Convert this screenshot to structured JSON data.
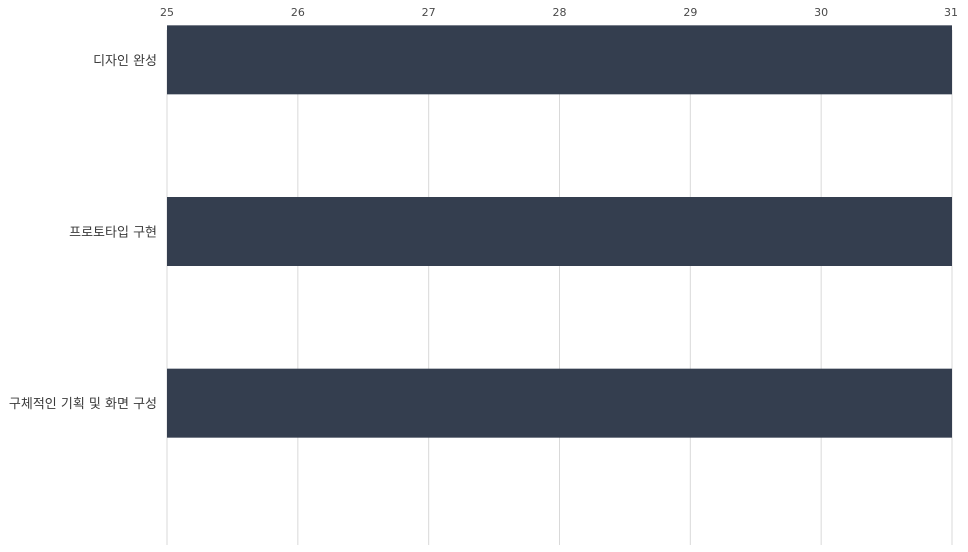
{
  "chart_data": {
    "type": "bar",
    "orientation": "horizontal",
    "title": "",
    "xlabel": "",
    "ylabel": "",
    "categories": [
      "디자인 완성",
      "프로토타입 구현",
      "구체적인 기획 및 화면 구성"
    ],
    "series": [
      {
        "values": [
          31,
          31,
          31
        ]
      }
    ],
    "xlim": [
      25,
      31
    ],
    "x_ticks": [
      25,
      26,
      27,
      28,
      29,
      30,
      31
    ],
    "x_tick_labels": [
      "25",
      "26",
      "27",
      "28",
      "29",
      "30",
      "31"
    ],
    "x_axis_position": "top",
    "grid": true,
    "legend": false,
    "bar_color": "#343e4f",
    "grid_color": "#d9d9d9"
  }
}
